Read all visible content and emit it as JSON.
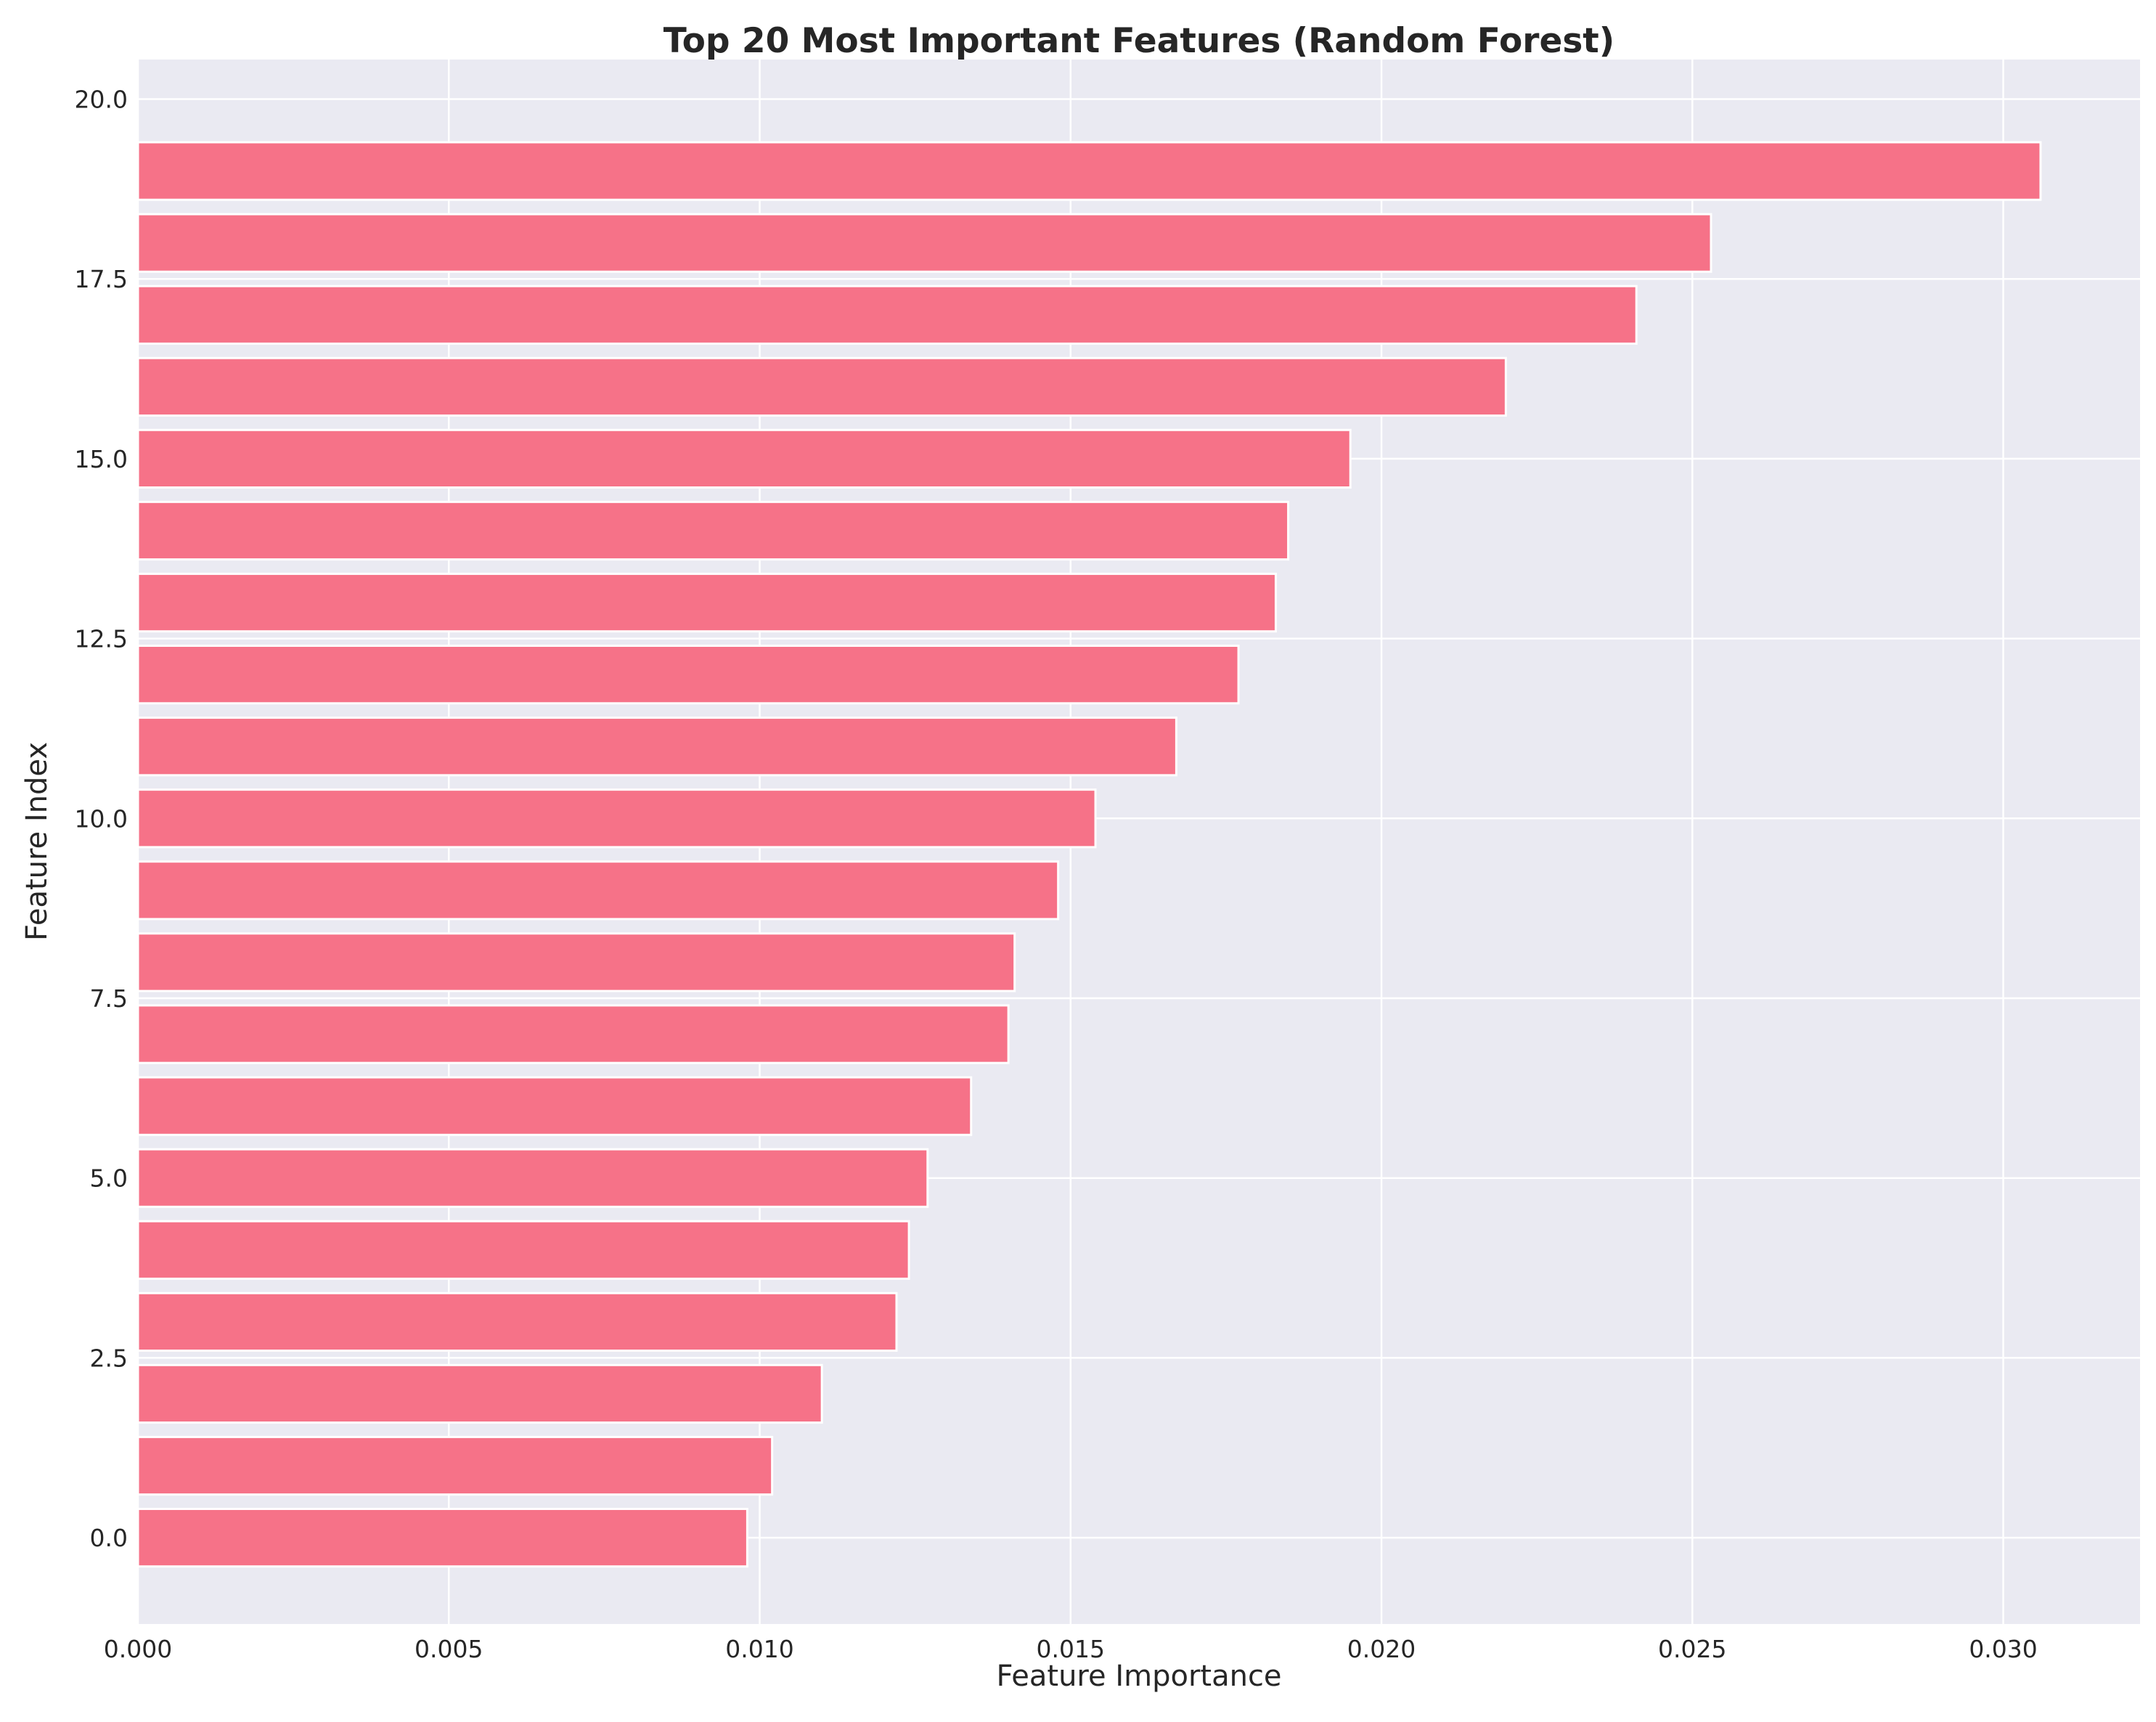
{
  "chart_data": {
    "type": "bar",
    "orientation": "horizontal",
    "title": "Top 20 Most Important Features (Random Forest)",
    "xlabel": "Feature Importance",
    "ylabel": "Feature Index",
    "xlim": [
      0,
      0.0322
    ],
    "ylim": [
      -1.2,
      20.55
    ],
    "xticks": [
      0.0,
      0.005,
      0.01,
      0.015,
      0.02,
      0.025,
      0.03
    ],
    "xtick_labels": [
      "0.000",
      "0.005",
      "0.010",
      "0.015",
      "0.020",
      "0.025",
      "0.030"
    ],
    "yticks": [
      0.0,
      2.5,
      5.0,
      7.5,
      10.0,
      12.5,
      15.0,
      17.5,
      20.0
    ],
    "ytick_labels": [
      "0.0",
      "2.5",
      "5.0",
      "7.5",
      "10.0",
      "12.5",
      "15.0",
      "17.5",
      "20.0"
    ],
    "y": [
      0,
      1,
      2,
      3,
      4,
      5,
      6,
      7,
      8,
      9,
      10,
      11,
      12,
      13,
      14,
      15,
      16,
      17,
      18,
      19
    ],
    "values": [
      0.0098,
      0.0102,
      0.011,
      0.0122,
      0.0124,
      0.0127,
      0.0134,
      0.014,
      0.0141,
      0.0148,
      0.0154,
      0.0167,
      0.0177,
      0.0183,
      0.0185,
      0.0195,
      0.022,
      0.0241,
      0.0253,
      0.0306
    ],
    "grid": true,
    "colors": {
      "bar": "#f67288",
      "plot_background": "#eaeaf2",
      "grid": "#ffffff",
      "text": "#262626"
    }
  }
}
